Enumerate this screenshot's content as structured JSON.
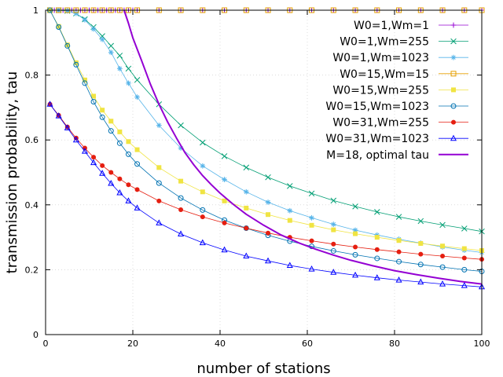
{
  "chart_data": {
    "type": "line",
    "title": "",
    "xlabel": "number of stations",
    "ylabel": "transmission probability, tau",
    "xlim": [
      0,
      100
    ],
    "ylim": [
      0,
      1
    ],
    "xticks": [
      0,
      20,
      40,
      60,
      80,
      100
    ],
    "yticks": [
      0,
      0.2,
      0.4,
      0.6,
      0.8,
      1
    ],
    "xtick_labels": [
      "0",
      "20",
      "40",
      "60",
      "80",
      "100"
    ],
    "ytick_labels": [
      "0",
      "0.2",
      "0.4",
      "0.6",
      "0.8",
      "1"
    ],
    "grid": true,
    "legend_position": "top-right",
    "series": [
      {
        "name": "W0=1,Wm=1",
        "color": "#9400d3",
        "marker": "plus",
        "x": [
          1,
          2,
          3,
          4,
          5,
          6,
          7,
          8,
          9,
          10,
          11,
          12,
          13,
          14,
          15,
          16,
          17,
          18,
          19,
          20,
          21,
          26,
          31,
          36,
          41,
          46,
          51,
          56,
          61,
          66,
          71,
          76,
          81,
          86,
          91,
          96,
          100
        ],
        "y": [
          1,
          1,
          1,
          1,
          1,
          1,
          1,
          1,
          1,
          1,
          1,
          1,
          1,
          1,
          1,
          1,
          1,
          1,
          1,
          1,
          1,
          1,
          1,
          1,
          1,
          1,
          1,
          1,
          1,
          1,
          1,
          1,
          1,
          1,
          1,
          1,
          1
        ]
      },
      {
        "name": "W0=1,Wm=255",
        "color": "#009e73",
        "marker": "x",
        "x": [
          1,
          3,
          5,
          7,
          9,
          11,
          13,
          15,
          17,
          19,
          21,
          26,
          31,
          36,
          41,
          46,
          51,
          56,
          61,
          66,
          71,
          76,
          81,
          86,
          91,
          96,
          100
        ],
        "y": [
          1.0,
          1.0,
          0.998,
          0.99,
          0.972,
          0.948,
          0.92,
          0.89,
          0.86,
          0.82,
          0.785,
          0.71,
          0.645,
          0.592,
          0.55,
          0.515,
          0.485,
          0.458,
          0.435,
          0.413,
          0.395,
          0.378,
          0.363,
          0.35,
          0.338,
          0.327,
          0.318
        ]
      },
      {
        "name": "W0=1,Wm=1023",
        "color": "#56b4e9",
        "marker": "asterisk",
        "x": [
          1,
          3,
          5,
          7,
          9,
          11,
          13,
          15,
          17,
          19,
          21,
          26,
          31,
          36,
          41,
          46,
          51,
          56,
          61,
          66,
          71,
          76,
          81,
          86,
          91,
          96,
          100
        ],
        "y": [
          1.0,
          1.0,
          0.998,
          0.99,
          0.97,
          0.942,
          0.91,
          0.87,
          0.82,
          0.775,
          0.732,
          0.645,
          0.575,
          0.52,
          0.478,
          0.44,
          0.408,
          0.382,
          0.36,
          0.34,
          0.322,
          0.307,
          0.294,
          0.282,
          0.27,
          0.26,
          0.253
        ]
      },
      {
        "name": "W0=15,Wm=15",
        "color": "#e69f00",
        "marker": "square-open",
        "x": [
          1,
          3,
          5,
          7,
          9,
          11,
          13,
          15,
          17,
          19,
          21,
          26,
          31,
          36,
          41,
          46,
          51,
          56,
          61,
          66,
          71,
          76,
          81,
          86,
          91,
          96,
          100
        ],
        "y": [
          1,
          1,
          1,
          1,
          1,
          1,
          1,
          1,
          1,
          1,
          1,
          1,
          1,
          1,
          1,
          1,
          1,
          1,
          1,
          1,
          1,
          1,
          1,
          1,
          1,
          1,
          1
        ]
      },
      {
        "name": "W0=15,Wm=255",
        "color": "#f0e442",
        "marker": "square-filled",
        "x": [
          1,
          3,
          5,
          7,
          9,
          11,
          13,
          15,
          17,
          19,
          21,
          26,
          31,
          36,
          41,
          46,
          51,
          56,
          61,
          66,
          71,
          76,
          81,
          86,
          91,
          96,
          100
        ],
        "y": [
          1.0,
          0.95,
          0.893,
          0.838,
          0.785,
          0.735,
          0.692,
          0.658,
          0.625,
          0.595,
          0.57,
          0.515,
          0.473,
          0.44,
          0.412,
          0.39,
          0.37,
          0.352,
          0.337,
          0.323,
          0.311,
          0.3,
          0.29,
          0.281,
          0.273,
          0.265,
          0.259
        ]
      },
      {
        "name": "W0=15,Wm=1023",
        "color": "#0072b2",
        "marker": "circle-open",
        "x": [
          1,
          3,
          5,
          7,
          9,
          11,
          13,
          15,
          17,
          19,
          21,
          26,
          31,
          36,
          41,
          46,
          51,
          56,
          61,
          66,
          71,
          76,
          81,
          86,
          91,
          96,
          100
        ],
        "y": [
          1.0,
          0.948,
          0.89,
          0.832,
          0.775,
          0.718,
          0.67,
          0.628,
          0.59,
          0.556,
          0.526,
          0.467,
          0.421,
          0.384,
          0.353,
          0.328,
          0.306,
          0.288,
          0.272,
          0.258,
          0.246,
          0.235,
          0.225,
          0.216,
          0.208,
          0.2,
          0.195
        ]
      },
      {
        "name": "W0=31,Wm=255",
        "color": "#e51e10",
        "marker": "circle-filled",
        "x": [
          1,
          3,
          5,
          7,
          9,
          11,
          13,
          15,
          17,
          19,
          21,
          26,
          31,
          36,
          41,
          46,
          51,
          56,
          61,
          66,
          71,
          76,
          81,
          86,
          91,
          96,
          100
        ],
        "y": [
          0.71,
          0.676,
          0.64,
          0.606,
          0.575,
          0.547,
          0.521,
          0.5,
          0.48,
          0.462,
          0.447,
          0.412,
          0.385,
          0.363,
          0.344,
          0.328,
          0.313,
          0.3,
          0.289,
          0.279,
          0.27,
          0.262,
          0.255,
          0.248,
          0.242,
          0.236,
          0.232
        ]
      },
      {
        "name": "W0=31,Wm=1023",
        "color": "#0000ff",
        "marker": "triangle-open",
        "x": [
          1,
          3,
          5,
          7,
          9,
          11,
          13,
          15,
          17,
          19,
          21,
          26,
          31,
          36,
          41,
          46,
          51,
          56,
          61,
          66,
          71,
          76,
          81,
          86,
          91,
          96,
          100
        ],
        "y": [
          0.71,
          0.674,
          0.637,
          0.6,
          0.565,
          0.53,
          0.497,
          0.466,
          0.437,
          0.412,
          0.39,
          0.344,
          0.31,
          0.283,
          0.261,
          0.242,
          0.227,
          0.213,
          0.202,
          0.192,
          0.183,
          0.175,
          0.168,
          0.162,
          0.156,
          0.151,
          0.147
        ]
      },
      {
        "name": "M=18, optimal tau",
        "color": "#9400d3",
        "marker": "none",
        "x": [
          18,
          19,
          20,
          22,
          24,
          26,
          28,
          30,
          32,
          34,
          36,
          38,
          40,
          43,
          46,
          50,
          54,
          58,
          62,
          66,
          70,
          75,
          80,
          85,
          90,
          95,
          100
        ],
        "y": [
          1.0,
          0.96,
          0.915,
          0.845,
          0.773,
          0.71,
          0.655,
          0.606,
          0.56,
          0.523,
          0.49,
          0.462,
          0.436,
          0.402,
          0.371,
          0.337,
          0.307,
          0.283,
          0.263,
          0.245,
          0.229,
          0.212,
          0.197,
          0.185,
          0.174,
          0.164,
          0.156
        ]
      }
    ]
  }
}
